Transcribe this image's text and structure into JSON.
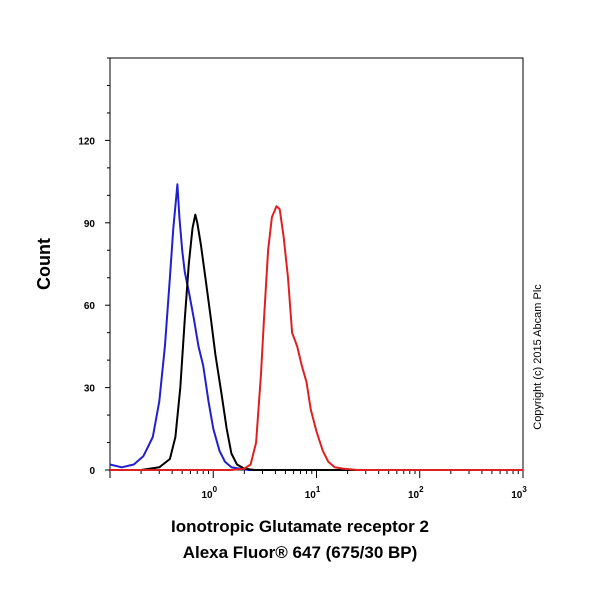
{
  "chart_data": {
    "type": "line",
    "title": "",
    "xlabel_line1": "Ionotropic Glutamate receptor 2",
    "xlabel_line2": "Alexa Fluor® 647 (675/30 BP)",
    "ylabel": "Count",
    "xscale": "log",
    "xlim": [
      0.1,
      1000
    ],
    "ylim": [
      0,
      150
    ],
    "yticks": [
      0,
      30,
      60,
      90,
      120
    ],
    "xticks": [
      {
        "value": 1,
        "base": "10",
        "exp": "0"
      },
      {
        "value": 10,
        "base": "10",
        "exp": "1"
      },
      {
        "value": 100,
        "base": "10",
        "exp": "2"
      },
      {
        "value": 1000,
        "base": "10",
        "exp": "3"
      }
    ],
    "grid": false,
    "annotation": "Copyright (c) 2015 Abcam Plc",
    "series": [
      {
        "color": "#2020cc",
        "points": [
          [
            0.1,
            2
          ],
          [
            0.13,
            1
          ],
          [
            0.17,
            2
          ],
          [
            0.21,
            5
          ],
          [
            0.26,
            12
          ],
          [
            0.3,
            25
          ],
          [
            0.34,
            45
          ],
          [
            0.38,
            70
          ],
          [
            0.41,
            88
          ],
          [
            0.44,
            100
          ],
          [
            0.45,
            104
          ],
          [
            0.47,
            92
          ],
          [
            0.5,
            80
          ],
          [
            0.53,
            72
          ],
          [
            0.58,
            65
          ],
          [
            0.65,
            55
          ],
          [
            0.72,
            45
          ],
          [
            0.8,
            38
          ],
          [
            0.9,
            25
          ],
          [
            1.0,
            15
          ],
          [
            1.15,
            7
          ],
          [
            1.3,
            3
          ],
          [
            1.5,
            1
          ],
          [
            1.8,
            0.5
          ],
          [
            2.2,
            0
          ],
          [
            1000,
            0
          ]
        ]
      },
      {
        "color": "#000000",
        "points": [
          [
            0.1,
            0
          ],
          [
            0.2,
            0
          ],
          [
            0.3,
            1
          ],
          [
            0.38,
            4
          ],
          [
            0.43,
            12
          ],
          [
            0.48,
            30
          ],
          [
            0.53,
            55
          ],
          [
            0.58,
            75
          ],
          [
            0.63,
            88
          ],
          [
            0.67,
            93
          ],
          [
            0.7,
            90
          ],
          [
            0.76,
            82
          ],
          [
            0.84,
            70
          ],
          [
            0.95,
            55
          ],
          [
            1.05,
            42
          ],
          [
            1.2,
            28
          ],
          [
            1.35,
            15
          ],
          [
            1.5,
            6
          ],
          [
            1.7,
            2
          ],
          [
            2.0,
            0.5
          ],
          [
            2.5,
            0
          ],
          [
            1000,
            0
          ]
        ]
      },
      {
        "color": "#e02020",
        "points": [
          [
            0.1,
            0
          ],
          [
            1.5,
            0
          ],
          [
            2.0,
            0.5
          ],
          [
            2.3,
            2
          ],
          [
            2.6,
            10
          ],
          [
            2.9,
            35
          ],
          [
            3.1,
            55
          ],
          [
            3.4,
            80
          ],
          [
            3.7,
            92
          ],
          [
            4.1,
            96
          ],
          [
            4.4,
            95
          ],
          [
            4.8,
            85
          ],
          [
            5.3,
            70
          ],
          [
            5.8,
            50
          ],
          [
            6.5,
            45
          ],
          [
            7.2,
            38
          ],
          [
            8.0,
            32
          ],
          [
            8.8,
            22
          ],
          [
            10,
            14
          ],
          [
            11.5,
            7
          ],
          [
            13,
            3
          ],
          [
            15,
            1
          ],
          [
            18,
            0.5
          ],
          [
            25,
            0
          ],
          [
            1000,
            0
          ]
        ]
      }
    ]
  }
}
